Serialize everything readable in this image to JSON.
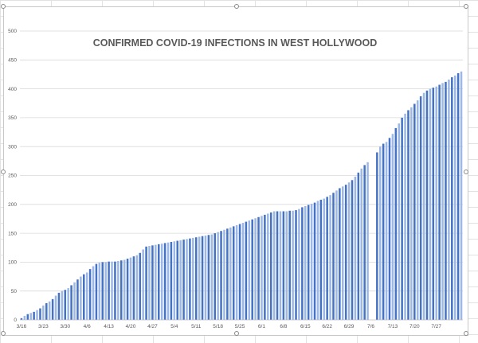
{
  "chart_data": {
    "type": "bar",
    "title": "CONFIRMED COVID-19 INFECTIONS IN WEST HOLLYWOOD",
    "xlabel": "",
    "ylabel": "",
    "ylim": [
      0,
      500
    ],
    "yticks": [
      0,
      50,
      100,
      150,
      200,
      250,
      300,
      350,
      400,
      450,
      500
    ],
    "grid": true,
    "legend": "none",
    "colors": {
      "bar": "#4472c4",
      "bar_light": "#9db8e6",
      "grid": "#d9d9d9",
      "text": "#595959"
    },
    "x_tick_labels": [
      "3/16",
      "3/23",
      "3/30",
      "4/6",
      "4/13",
      "4/20",
      "4/27",
      "5/4",
      "5/11",
      "5/18",
      "5/25",
      "6/1",
      "6/8",
      "6/15",
      "6/22",
      "6/29",
      "7/6",
      "7/13",
      "7/20",
      "7/27"
    ],
    "series": [
      {
        "values": [
          3,
          7,
          10,
          12,
          14,
          17,
          20,
          25,
          29,
          32,
          36,
          42,
          47,
          50,
          52,
          55,
          60,
          65,
          70,
          75,
          79,
          82,
          88,
          93,
          97,
          99,
          100,
          100,
          101,
          101,
          101,
          102,
          103,
          104,
          106,
          108,
          110,
          112,
          116,
          122,
          127,
          128,
          129,
          130,
          131,
          132,
          133,
          134,
          135,
          136,
          137,
          138,
          139,
          140,
          141,
          142,
          143,
          144,
          145,
          146,
          147,
          148,
          150,
          152,
          154,
          156,
          158,
          160,
          162,
          164,
          166,
          168,
          170,
          172,
          174,
          176,
          178,
          180,
          182,
          184,
          186,
          188,
          188,
          188,
          188,
          188,
          189,
          189,
          190,
          192,
          195,
          197,
          199,
          201,
          203,
          206,
          208,
          210,
          213,
          216,
          220,
          224,
          228,
          231,
          234,
          238,
          242,
          248,
          255,
          262,
          268,
          273,
          null,
          null,
          290,
          300,
          305,
          308,
          315,
          322,
          332,
          340,
          350,
          357,
          363,
          368,
          374,
          380,
          387,
          393,
          397,
          400,
          402,
          404,
          407,
          410,
          412,
          416,
          420,
          423,
          427,
          430
        ]
      }
    ]
  }
}
